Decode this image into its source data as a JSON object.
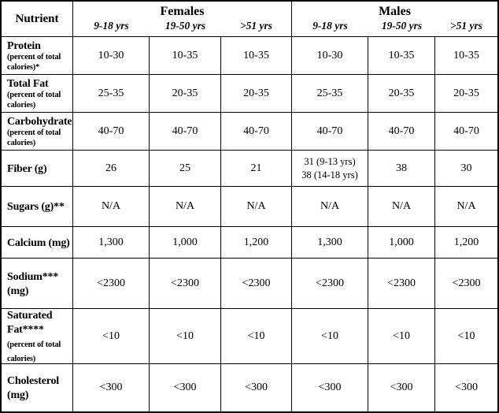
{
  "colors": {
    "border": "#000000",
    "background": "#ffffff",
    "text": "#000000"
  },
  "table": {
    "header": {
      "nutrient_label": "Nutrient",
      "groups": [
        {
          "label": "Females",
          "ages": [
            "9-18 yrs",
            "19-50 yrs",
            ">51 yrs"
          ]
        },
        {
          "label": "Males",
          "ages": [
            "9-18 yrs",
            "19-50 yrs",
            ">51 yrs"
          ]
        }
      ]
    },
    "rows": [
      {
        "label": "Protein",
        "note": "(percent of total calories)*",
        "note_style": "block",
        "values": [
          "10-30",
          "10-35",
          "10-35",
          "10-30",
          "10-35",
          "10-35"
        ]
      },
      {
        "label": "Total Fat",
        "note": "(percent of total calories)",
        "note_style": "block",
        "values": [
          "25-35",
          "20-35",
          "20-35",
          "25-35",
          "20-35",
          "20-35"
        ]
      },
      {
        "label": "Carbohydrate",
        "note": "(percent of total calories)",
        "note_style": "block",
        "values": [
          "40-70",
          "40-70",
          "40-70",
          "40-70",
          "40-70",
          "40-70"
        ]
      },
      {
        "label": "Fiber (g)",
        "note": "",
        "note_style": "none",
        "values": [
          "26",
          "25",
          "21",
          "31 (9-13 yrs)\n38 (14-18 yrs)",
          "38",
          "30"
        ]
      },
      {
        "label": "Sugars (g)**",
        "note": "",
        "note_style": "none",
        "values": [
          "N/A",
          "N/A",
          "N/A",
          "N/A",
          "N/A",
          "N/A"
        ]
      },
      {
        "label": "Calcium (mg)",
        "note": "",
        "note_style": "none",
        "values": [
          "1,300",
          "1,000",
          "1,200",
          "1,300",
          "1,000",
          "1,200"
        ]
      },
      {
        "label": "Sodium***\n(mg)",
        "note": "",
        "note_style": "none",
        "values": [
          "<2300",
          "<2300",
          "<2300",
          "<2300",
          "<2300",
          "<2300"
        ]
      },
      {
        "label": "Saturated\nFat****",
        "note": "(percent of total calories)",
        "note_style": "inline",
        "values": [
          "<10",
          "<10",
          "<10",
          "<10",
          "<10",
          "<10"
        ]
      },
      {
        "label": "Cholesterol\n(mg)",
        "note": "",
        "note_style": "none",
        "values": [
          "<300",
          "<300",
          "<300",
          "<300",
          "<300",
          "<300"
        ]
      }
    ]
  }
}
